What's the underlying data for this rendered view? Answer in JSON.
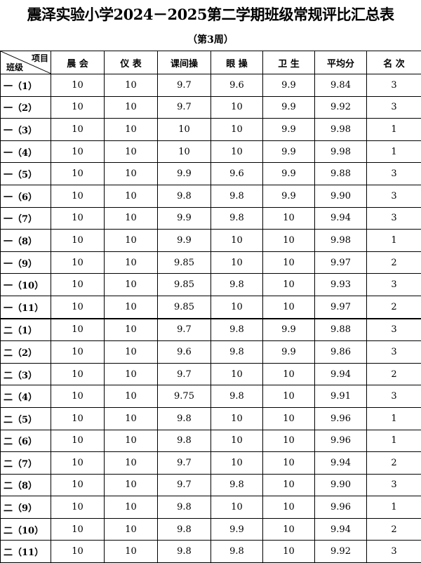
{
  "title": "震泽实验小学2024－2025第二学期班级常规评比汇总表",
  "subtitle": "（第3周）",
  "table": {
    "corner": {
      "top": "项目",
      "bottom": "班级"
    },
    "header": [
      "晨 会",
      "仪 表",
      "课间操",
      "眼 操",
      "卫 生",
      "平均分",
      "名 次"
    ],
    "rows": [
      [
        "一（1）",
        "10",
        "10",
        "9.7",
        "9.6",
        "9.9",
        "9.84",
        "3"
      ],
      [
        "一（2）",
        "10",
        "10",
        "9.7",
        "10",
        "9.9",
        "9.92",
        "3"
      ],
      [
        "一（3）",
        "10",
        "10",
        "10",
        "10",
        "9.9",
        "9.98",
        "1"
      ],
      [
        "一（4）",
        "10",
        "10",
        "10",
        "10",
        "9.9",
        "9.98",
        "1"
      ],
      [
        "一（5）",
        "10",
        "10",
        "9.9",
        "9.6",
        "9.9",
        "9.88",
        "3"
      ],
      [
        "一（6）",
        "10",
        "10",
        "9.8",
        "9.8",
        "9.9",
        "9.90",
        "3"
      ],
      [
        "一（7）",
        "10",
        "10",
        "9.9",
        "9.8",
        "10",
        "9.94",
        "3"
      ],
      [
        "一（8）",
        "10",
        "10",
        "9.9",
        "10",
        "10",
        "9.98",
        "1"
      ],
      [
        "一（9）",
        "10",
        "10",
        "9.85",
        "10",
        "10",
        "9.97",
        "2"
      ],
      [
        "一（10）",
        "10",
        "10",
        "9.85",
        "9.8",
        "10",
        "9.93",
        "3"
      ],
      [
        "一（11）",
        "10",
        "10",
        "9.85",
        "10",
        "10",
        "9.97",
        "2"
      ],
      [
        "二（1）",
        "10",
        "10",
        "9.7",
        "9.8",
        "9.9",
        "9.88",
        "3"
      ],
      [
        "二（2）",
        "10",
        "10",
        "9.6",
        "9.8",
        "9.9",
        "9.86",
        "3"
      ],
      [
        "二（3）",
        "10",
        "10",
        "9.7",
        "10",
        "10",
        "9.94",
        "2"
      ],
      [
        "二（4）",
        "10",
        "10",
        "9.75",
        "9.8",
        "10",
        "9.91",
        "3"
      ],
      [
        "二（5）",
        "10",
        "10",
        "9.8",
        "10",
        "10",
        "9.96",
        "1"
      ],
      [
        "二（6）",
        "10",
        "10",
        "9.8",
        "10",
        "10",
        "9.96",
        "1"
      ],
      [
        "二（7）",
        "10",
        "10",
        "9.7",
        "10",
        "10",
        "9.94",
        "2"
      ],
      [
        "二（8）",
        "10",
        "10",
        "9.7",
        "9.8",
        "10",
        "9.90",
        "3"
      ],
      [
        "二（9）",
        "10",
        "10",
        "9.8",
        "10",
        "10",
        "9.96",
        "1"
      ],
      [
        "二（10）",
        "10",
        "10",
        "9.8",
        "9.9",
        "10",
        "9.94",
        "2"
      ],
      [
        "二（11）",
        "10",
        "10",
        "9.8",
        "9.8",
        "10",
        "9.92",
        "3"
      ]
    ]
  }
}
